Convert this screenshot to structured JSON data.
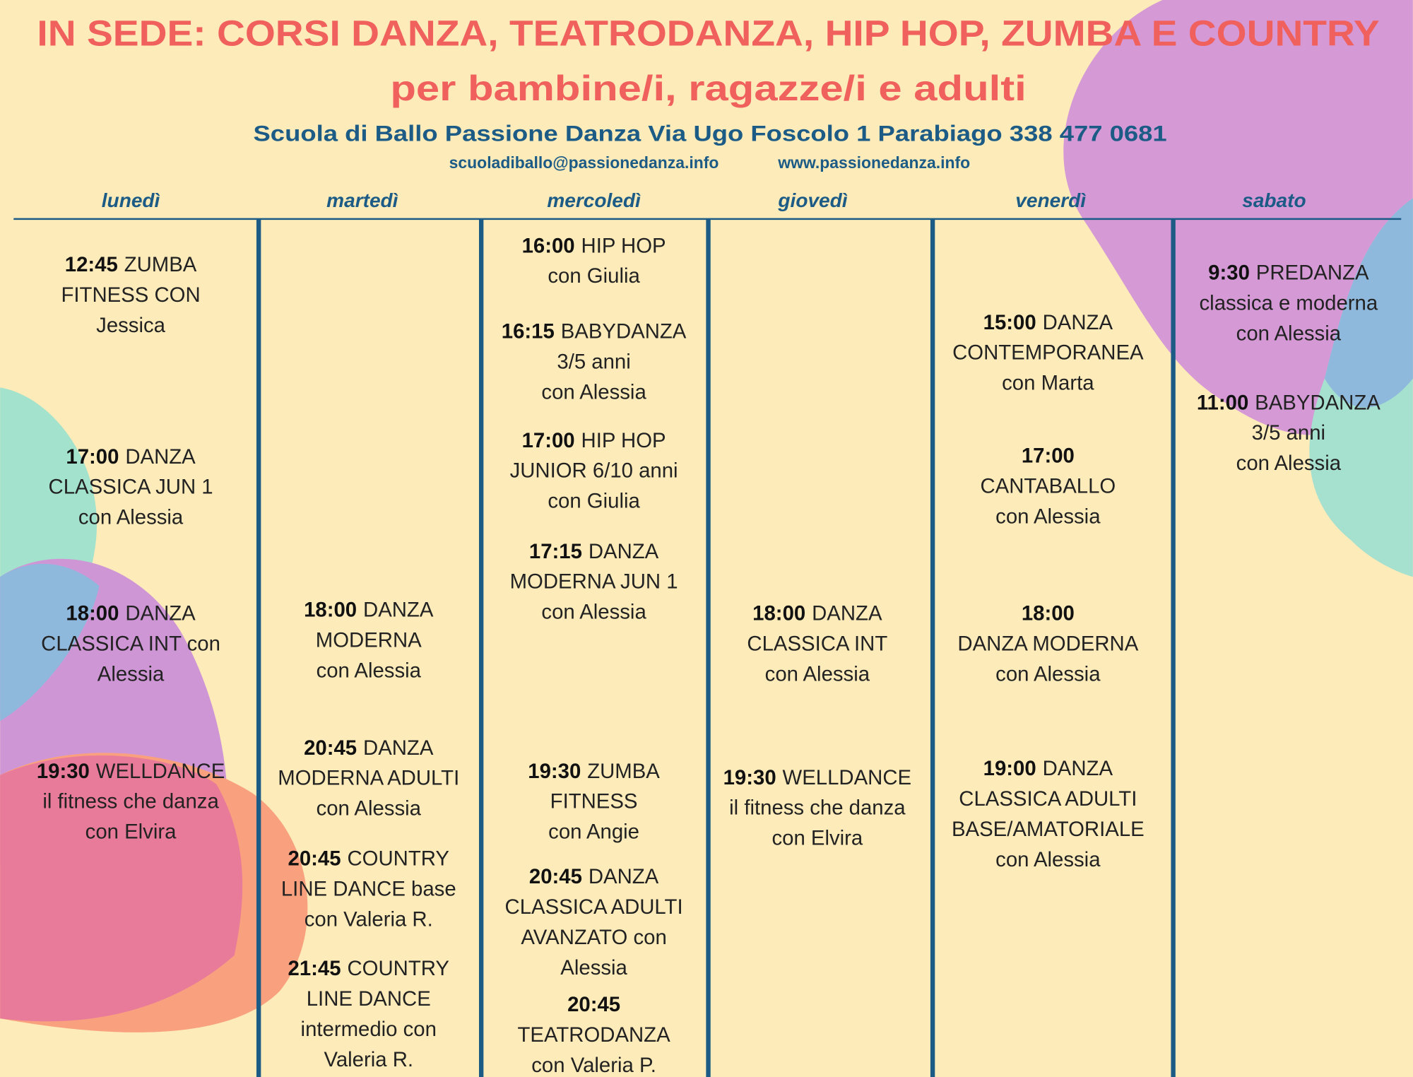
{
  "header": {
    "title": "IN SEDE:  CORSI DANZA, TEATRODANZA, HIP HOP, ZUMBA E COUNTRY",
    "subtitle": "per bambine/i, ragazze/i e adulti",
    "school": "Scuola di Ballo Passione Danza Via Ugo Foscolo 1  Parabiago  338 477 0681",
    "email": "scuoladiballo@passionedanza.info",
    "website": "www.passionedanza.info"
  },
  "days": [
    {
      "name": "lunedì",
      "classes": [
        {
          "time": "12:45",
          "lines": [
            "ZUMBA",
            "FITNESS CON",
            "Jessica"
          ]
        },
        {
          "time": "17:00",
          "lines": [
            "DANZA",
            "CLASSICA JUN 1",
            "con Alessia"
          ]
        },
        {
          "time": "18:00",
          "lines": [
            "DANZA",
            "CLASSICA INT con",
            "Alessia"
          ]
        },
        {
          "time": "19:30",
          "lines": [
            "WELLDANCE",
            "il fitness che danza",
            "con Elvira"
          ]
        }
      ]
    },
    {
      "name": "martedì",
      "classes": [
        {
          "time": "18:00",
          "lines": [
            "DANZA",
            "MODERNA",
            "con Alessia"
          ]
        },
        {
          "time": "20:45",
          "lines": [
            "DANZA",
            "MODERNA ADULTI",
            "con Alessia"
          ]
        },
        {
          "time": "20:45",
          "lines": [
            "COUNTRY",
            "LINE DANCE base",
            "con Valeria R."
          ]
        },
        {
          "time": "21:45",
          "lines": [
            "COUNTRY",
            "LINE DANCE",
            "intermedio con",
            "Valeria R."
          ]
        }
      ]
    },
    {
      "name": "mercoledì",
      "classes": [
        {
          "time": "16:00",
          "lines": [
            "HIP HOP",
            "con Giulia"
          ]
        },
        {
          "time": "16:15",
          "lines": [
            "BABYDANZA",
            "3/5 anni",
            "con Alessia"
          ]
        },
        {
          "time": "17:00",
          "lines": [
            "HIP HOP",
            "JUNIOR 6/10 anni",
            "con Giulia"
          ]
        },
        {
          "time": "17:15",
          "lines": [
            "DANZA",
            "MODERNA JUN 1",
            "con Alessia"
          ]
        },
        {
          "time": "19:30",
          "lines": [
            "ZUMBA",
            "FITNESS",
            "con Angie"
          ]
        },
        {
          "time": "20:45",
          "lines": [
            "DANZA",
            "CLASSICA ADULTI",
            "AVANZATO con",
            "Alessia"
          ]
        },
        {
          "time": "20:45",
          "lines": [
            "TEATRODANZA",
            "con Valeria P."
          ]
        }
      ]
    },
    {
      "name": "giovedì",
      "classes": [
        {
          "time": "18:00",
          "lines": [
            "DANZA",
            "CLASSICA INT",
            "con Alessia"
          ]
        },
        {
          "time": "19:30",
          "lines": [
            "WELLDANCE",
            "il fitness che danza",
            "con Elvira"
          ]
        }
      ]
    },
    {
      "name": "venerdì",
      "classes": [
        {
          "time": "15:00",
          "lines": [
            "DANZA",
            "CONTEMPORANEA",
            "con Marta"
          ]
        },
        {
          "time": "17:00",
          "lines": [
            "CANTABALLO",
            "con Alessia"
          ]
        },
        {
          "time": "18:00",
          "lines": [
            "DANZA MODERNA",
            "con Alessia"
          ]
        },
        {
          "time": "19:00",
          "lines": [
            "DANZA",
            "CLASSICA ADULTI",
            "BASE/AMATORIALE",
            "con Alessia"
          ]
        }
      ]
    },
    {
      "name": "sabato",
      "classes": [
        {
          "time": "9:30",
          "lines": [
            "PREDANZA",
            "classica e moderna",
            "con Alessia"
          ]
        },
        {
          "time": "11:00",
          "lines": [
            "BABYDANZA",
            "3/5 anni",
            "con Alessia"
          ]
        }
      ]
    }
  ]
}
